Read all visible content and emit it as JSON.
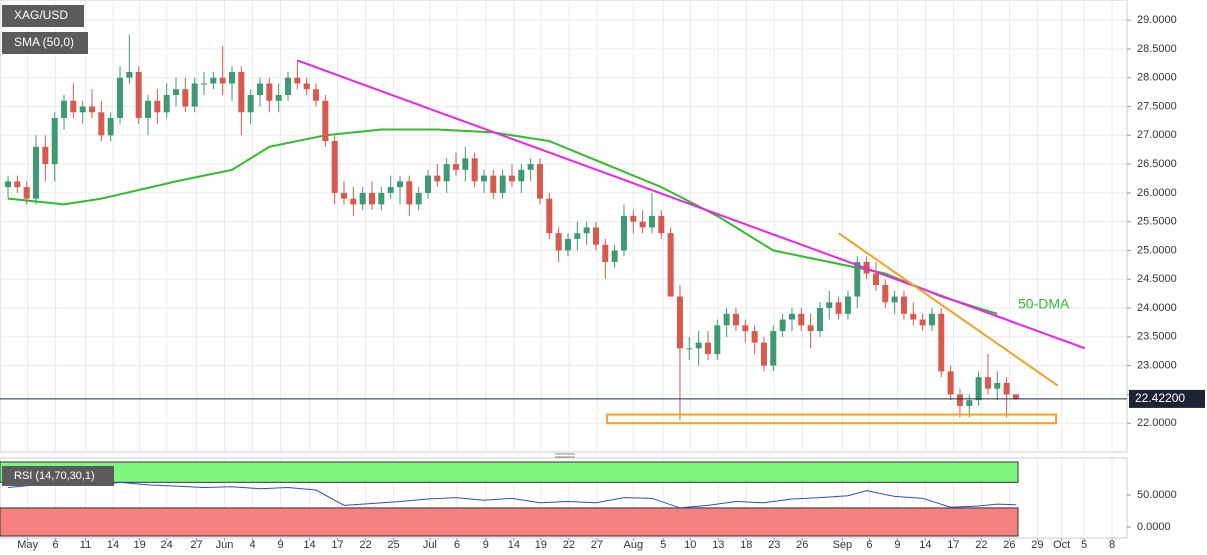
{
  "chart_data": {
    "type": "candlestick",
    "title": "XAG/USD",
    "xlim": [
      -0.86,
      119.9
    ],
    "ylim": [
      21.5,
      29.35
    ],
    "yticks": [
      {
        "value": 22,
        "label": "22.0000"
      },
      {
        "value": 22.5,
        "label": "22.5000"
      },
      {
        "value": 23,
        "label": "23.0000"
      },
      {
        "value": 23.5,
        "label": "23.5000"
      },
      {
        "value": 24,
        "label": "24.0000"
      },
      {
        "value": 24.5,
        "label": "24.5000"
      },
      {
        "value": 25,
        "label": "25.0000"
      },
      {
        "value": 25.5,
        "label": "25.5000"
      },
      {
        "value": 26,
        "label": "26.0000"
      },
      {
        "value": 26.5,
        "label": "26.5000"
      },
      {
        "value": 27,
        "label": "27.0000"
      },
      {
        "value": 27.5,
        "label": "27.5000"
      },
      {
        "value": 28,
        "label": "28.0000"
      },
      {
        "value": 28.5,
        "label": "28.5000"
      },
      {
        "value": 29,
        "label": "29.0000"
      }
    ],
    "xticks": [
      {
        "value": 2.1,
        "label": "May"
      },
      {
        "value": 5.1,
        "label": "6"
      },
      {
        "value": 8.3,
        "label": "11"
      },
      {
        "value": 11.25,
        "label": "14"
      },
      {
        "value": 14.1,
        "label": "19"
      },
      {
        "value": 17,
        "label": "24"
      },
      {
        "value": 20.2,
        "label": "27"
      },
      {
        "value": 23.2,
        "label": "Jun"
      },
      {
        "value": 26.2,
        "label": "4"
      },
      {
        "value": 29.2,
        "label": "9"
      },
      {
        "value": 32.3,
        "label": "14"
      },
      {
        "value": 35.3,
        "label": "17"
      },
      {
        "value": 38.3,
        "label": "22"
      },
      {
        "value": 41.3,
        "label": "25"
      },
      {
        "value": 45.2,
        "label": "Jul"
      },
      {
        "value": 48.1,
        "label": "6"
      },
      {
        "value": 51.2,
        "label": "9"
      },
      {
        "value": 54.2,
        "label": "14"
      },
      {
        "value": 57.1,
        "label": "19"
      },
      {
        "value": 60.1,
        "label": "22"
      },
      {
        "value": 63.1,
        "label": "27"
      },
      {
        "value": 67,
        "label": "Aug"
      },
      {
        "value": 70.2,
        "label": "5"
      },
      {
        "value": 73.1,
        "label": "10"
      },
      {
        "value": 76.1,
        "label": "13"
      },
      {
        "value": 79.1,
        "label": "18"
      },
      {
        "value": 82.1,
        "label": "23"
      },
      {
        "value": 85.1,
        "label": "26"
      },
      {
        "value": 89.4,
        "label": "Sep"
      },
      {
        "value": 92.3,
        "label": "6"
      },
      {
        "value": 95.3,
        "label": "9"
      },
      {
        "value": 98.3,
        "label": "14"
      },
      {
        "value": 101.3,
        "label": "17"
      },
      {
        "value": 104.3,
        "label": "22"
      },
      {
        "value": 107.3,
        "label": "26"
      },
      {
        "value": 110.3,
        "label": "29"
      },
      {
        "value": 112.9,
        "label": "Oct"
      },
      {
        "value": 115.3,
        "label": "5"
      },
      {
        "value": 118.3,
        "label": "8"
      }
    ],
    "grid": true,
    "up_color": "#3d9a73",
    "down_color": "#d9594c",
    "ohlc": [
      [
        26.1,
        26.3,
        25.9,
        26.2
      ],
      [
        26.2,
        26.3,
        26.0,
        26.1
      ],
      [
        26.1,
        26.2,
        25.8,
        25.9
      ],
      [
        25.9,
        27.0,
        25.8,
        26.8
      ],
      [
        26.8,
        27.0,
        26.2,
        26.5
      ],
      [
        26.5,
        27.4,
        26.2,
        27.3
      ],
      [
        27.3,
        27.7,
        27.1,
        27.6
      ],
      [
        27.6,
        27.9,
        27.3,
        27.4
      ],
      [
        27.4,
        27.6,
        27.2,
        27.5
      ],
      [
        27.5,
        27.8,
        27.3,
        27.4
      ],
      [
        27.4,
        27.6,
        26.9,
        27.0
      ],
      [
        27.0,
        27.4,
        26.9,
        27.3
      ],
      [
        27.3,
        28.2,
        27.2,
        28.0
      ],
      [
        28.0,
        28.75,
        27.9,
        28.1
      ],
      [
        28.1,
        28.2,
        27.2,
        27.3
      ],
      [
        27.3,
        27.7,
        27.0,
        27.6
      ],
      [
        27.6,
        27.8,
        27.2,
        27.4
      ],
      [
        27.4,
        27.9,
        27.3,
        27.7
      ],
      [
        27.7,
        28.0,
        27.5,
        27.8
      ],
      [
        27.8,
        28.0,
        27.4,
        27.5
      ],
      [
        27.5,
        28.0,
        27.4,
        27.9
      ],
      [
        27.9,
        28.1,
        27.7,
        27.9
      ],
      [
        27.9,
        28.1,
        27.8,
        28.0
      ],
      [
        28.0,
        28.55,
        27.7,
        27.9
      ],
      [
        27.9,
        28.2,
        27.6,
        28.1
      ],
      [
        28.1,
        28.2,
        27.0,
        27.4
      ],
      [
        27.4,
        27.8,
        27.2,
        27.7
      ],
      [
        27.7,
        28.0,
        27.5,
        27.9
      ],
      [
        27.9,
        28.0,
        27.4,
        27.6
      ],
      [
        27.6,
        27.9,
        27.4,
        27.7
      ],
      [
        27.7,
        28.1,
        27.6,
        28.0
      ],
      [
        28.0,
        28.3,
        27.8,
        27.9
      ],
      [
        27.9,
        28.0,
        27.7,
        27.8
      ],
      [
        27.8,
        27.9,
        27.5,
        27.6
      ],
      [
        27.6,
        27.7,
        26.8,
        26.9
      ],
      [
        26.9,
        27.0,
        25.8,
        26.0
      ],
      [
        26.0,
        26.2,
        25.8,
        25.9
      ],
      [
        25.9,
        26.1,
        25.6,
        25.8
      ],
      [
        25.8,
        26.1,
        25.7,
        26.0
      ],
      [
        26.0,
        26.2,
        25.7,
        25.8
      ],
      [
        25.8,
        26.1,
        25.7,
        26.0
      ],
      [
        26.0,
        26.3,
        25.9,
        26.1
      ],
      [
        26.1,
        26.3,
        25.8,
        26.2
      ],
      [
        26.2,
        26.3,
        25.6,
        25.8
      ],
      [
        25.8,
        26.1,
        25.7,
        26.0
      ],
      [
        26.0,
        26.4,
        25.9,
        26.3
      ],
      [
        26.3,
        26.5,
        26.1,
        26.2
      ],
      [
        26.2,
        26.6,
        26.0,
        26.5
      ],
      [
        26.5,
        26.7,
        26.3,
        26.4
      ],
      [
        26.4,
        26.8,
        26.2,
        26.6
      ],
      [
        26.6,
        26.7,
        26.1,
        26.2
      ],
      [
        26.2,
        26.4,
        26.0,
        26.3
      ],
      [
        26.3,
        26.4,
        25.9,
        26.0
      ],
      [
        26.0,
        26.4,
        25.9,
        26.3
      ],
      [
        26.3,
        26.5,
        26.1,
        26.2
      ],
      [
        26.2,
        26.5,
        26.0,
        26.4
      ],
      [
        26.4,
        26.6,
        26.2,
        26.5
      ],
      [
        26.5,
        26.6,
        25.8,
        25.9
      ],
      [
        25.9,
        26.0,
        25.2,
        25.3
      ],
      [
        25.3,
        25.4,
        24.8,
        25.0
      ],
      [
        25.0,
        25.3,
        24.9,
        25.2
      ],
      [
        25.2,
        25.5,
        25.0,
        25.3
      ],
      [
        25.3,
        25.5,
        25.1,
        25.4
      ],
      [
        25.4,
        25.5,
        25.0,
        25.1
      ],
      [
        25.1,
        25.2,
        24.5,
        24.8
      ],
      [
        24.8,
        25.1,
        24.7,
        25.0
      ],
      [
        25.0,
        25.8,
        24.9,
        25.6
      ],
      [
        25.6,
        25.7,
        25.3,
        25.5
      ],
      [
        25.5,
        25.7,
        25.3,
        25.4
      ],
      [
        25.4,
        26.0,
        25.3,
        25.6
      ],
      [
        25.6,
        25.7,
        25.2,
        25.3
      ],
      [
        25.3,
        25.4,
        24.2,
        24.2
      ],
      [
        24.2,
        24.4,
        22.05,
        23.3
      ],
      [
        23.3,
        23.5,
        23.1,
        23.3
      ],
      [
        23.3,
        23.6,
        23.0,
        23.4
      ],
      [
        23.4,
        23.6,
        23.1,
        23.2
      ],
      [
        23.2,
        23.8,
        23.1,
        23.7
      ],
      [
        23.7,
        24.0,
        23.5,
        23.9
      ],
      [
        23.9,
        24.0,
        23.6,
        23.7
      ],
      [
        23.7,
        23.8,
        23.4,
        23.6
      ],
      [
        23.6,
        23.7,
        23.2,
        23.4
      ],
      [
        23.4,
        23.5,
        22.9,
        23.0
      ],
      [
        23.0,
        23.7,
        22.9,
        23.6
      ],
      [
        23.6,
        23.9,
        23.5,
        23.8
      ],
      [
        23.8,
        24.0,
        23.6,
        23.9
      ],
      [
        23.9,
        24.0,
        23.6,
        23.7
      ],
      [
        23.7,
        23.9,
        23.3,
        23.6
      ],
      [
        23.6,
        24.1,
        23.5,
        24.0
      ],
      [
        24.0,
        24.3,
        23.8,
        24.1
      ],
      [
        24.1,
        24.2,
        23.8,
        23.9
      ],
      [
        23.9,
        24.3,
        23.8,
        24.2
      ],
      [
        24.2,
        24.9,
        24.0,
        24.8
      ],
      [
        24.8,
        24.9,
        24.5,
        24.6
      ],
      [
        24.6,
        24.8,
        24.3,
        24.4
      ],
      [
        24.4,
        24.5,
        24.0,
        24.1
      ],
      [
        24.1,
        24.3,
        23.9,
        24.2
      ],
      [
        24.2,
        24.3,
        23.8,
        23.9
      ],
      [
        23.9,
        24.1,
        23.7,
        23.8
      ],
      [
        23.8,
        23.9,
        23.6,
        23.7
      ],
      [
        23.7,
        24.0,
        23.6,
        23.9
      ],
      [
        23.9,
        24.0,
        22.8,
        22.9
      ],
      [
        22.9,
        23.0,
        22.4,
        22.5
      ],
      [
        22.5,
        22.6,
        22.1,
        22.3
      ],
      [
        22.3,
        22.5,
        22.1,
        22.4
      ],
      [
        22.4,
        22.9,
        22.3,
        22.8
      ],
      [
        22.8,
        23.2,
        22.5,
        22.6
      ],
      [
        22.6,
        22.9,
        22.4,
        22.7
      ],
      [
        22.7,
        22.8,
        22.1,
        22.5
      ],
      [
        22.5,
        22.5,
        22.4,
        22.42
      ]
    ],
    "sma": {
      "name": "SMA (50,0)",
      "color": "#2dbd2d",
      "x": [
        0,
        6,
        10,
        18,
        24,
        28,
        34,
        40,
        46,
        52,
        58,
        64,
        70,
        76,
        82,
        88,
        94,
        100,
        106
      ],
      "values": [
        25.9,
        25.8,
        25.9,
        26.2,
        26.4,
        26.8,
        27.0,
        27.1,
        27.1,
        27.05,
        26.9,
        26.5,
        26.1,
        25.6,
        25.0,
        24.8,
        24.6,
        24.2,
        23.9
      ]
    },
    "annotation": "50-DMA",
    "trendlines": [
      {
        "color": "#ee22ee",
        "x": [
          31,
          115.4
        ],
        "y": [
          28.3,
          23.3
        ]
      },
      {
        "color": "#f5a020",
        "x": [
          89,
          112.5
        ],
        "y": [
          25.3,
          22.65
        ]
      }
    ],
    "zone": {
      "color": "#f5a020",
      "x": [
        64.2,
        112.3
      ],
      "y": [
        22.0,
        22.15
      ]
    },
    "current_price": {
      "value": 22.422,
      "label": "22.42200"
    },
    "rsi": {
      "name": "RSI (14,70,30,1)",
      "color": "#2a4bd7",
      "ylim": [
        -17,
        108
      ],
      "yticks": [
        {
          "value": 0,
          "label": "0.0000"
        },
        {
          "value": 50,
          "label": "50.0000"
        }
      ],
      "bands": [
        30,
        70
      ],
      "x": [
        0,
        3,
        6,
        9,
        12,
        15,
        18,
        21,
        24,
        27,
        30,
        33,
        36,
        39,
        42,
        45,
        48,
        51,
        54,
        57,
        60,
        63,
        66,
        69,
        72,
        75,
        78,
        81,
        84,
        87,
        90,
        92,
        95,
        98,
        101,
        104,
        106,
        108
      ],
      "values": [
        62,
        66,
        68,
        65,
        70,
        66,
        64,
        62,
        63,
        60,
        62,
        58,
        34,
        37,
        40,
        44,
        46,
        42,
        45,
        38,
        40,
        38,
        46,
        45,
        30,
        34,
        40,
        38,
        44,
        46,
        49,
        57,
        48,
        45,
        31,
        33,
        36,
        35
      ]
    }
  }
}
